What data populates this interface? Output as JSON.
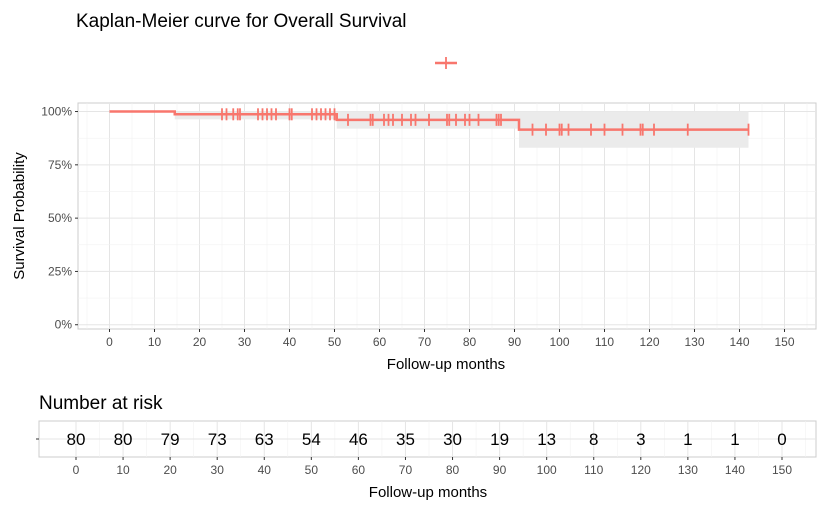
{
  "chart_data": [
    {
      "type": "line",
      "subtype": "kaplan-meier",
      "title": "Kaplan-Meier curve for Overall Survival",
      "xlabel": "Follow-up months",
      "ylabel": "Survival Probability",
      "xlim": [
        -7,
        157
      ],
      "ylim": [
        -0.02,
        1.04
      ],
      "x_ticks": [
        0,
        10,
        20,
        30,
        40,
        50,
        60,
        70,
        80,
        90,
        100,
        110,
        120,
        130,
        140,
        150
      ],
      "x_tick_labels": [
        "0",
        "10",
        "20",
        "30",
        "40",
        "50",
        "60",
        "70",
        "80",
        "90",
        "100",
        "110",
        "120",
        "130",
        "140",
        "150"
      ],
      "y_ticks": [
        0,
        0.25,
        0.5,
        0.75,
        1.0
      ],
      "y_tick_labels": [
        "0%",
        "25%",
        "50%",
        "75%",
        "100%"
      ],
      "grid": true,
      "legend": "top-center",
      "color": "#f8766d",
      "ci_color": "#ebebeb",
      "steps": [
        {
          "x": 0,
          "y": 1.0,
          "lower": 1.0,
          "upper": 1.0
        },
        {
          "x": 14.5,
          "y": 0.987,
          "lower": 0.963,
          "upper": 1.0
        },
        {
          "x": 50.5,
          "y": 0.961,
          "lower": 0.92,
          "upper": 1.0
        },
        {
          "x": 91,
          "y": 0.915,
          "lower": 0.83,
          "upper": 1.0
        }
      ],
      "end_x": 142,
      "censored": [
        25,
        26,
        27.5,
        28.5,
        29,
        33,
        34,
        35,
        36,
        37,
        40,
        40.5,
        45,
        46,
        47,
        48,
        49,
        50,
        53,
        58,
        58.5,
        61,
        62,
        63,
        65,
        67,
        68,
        71,
        75,
        75.5,
        77,
        79,
        80,
        82,
        86,
        86.5,
        87,
        94,
        97,
        100,
        100.5,
        102,
        107,
        110,
        114,
        118,
        118.5,
        121,
        128.5,
        142
      ]
    },
    {
      "type": "table",
      "title": "Number at risk",
      "xlabel": "Follow-up months",
      "x_ticks": [
        0,
        10,
        20,
        30,
        40,
        50,
        60,
        70,
        80,
        90,
        100,
        110,
        120,
        130,
        140,
        150
      ],
      "x_tick_labels": [
        "0",
        "10",
        "20",
        "30",
        "40",
        "50",
        "60",
        "70",
        "80",
        "90",
        "100",
        "110",
        "120",
        "130",
        "140",
        "150"
      ],
      "values": [
        80,
        80,
        79,
        73,
        63,
        54,
        46,
        35,
        30,
        19,
        13,
        8,
        3,
        1,
        1,
        0
      ]
    }
  ]
}
